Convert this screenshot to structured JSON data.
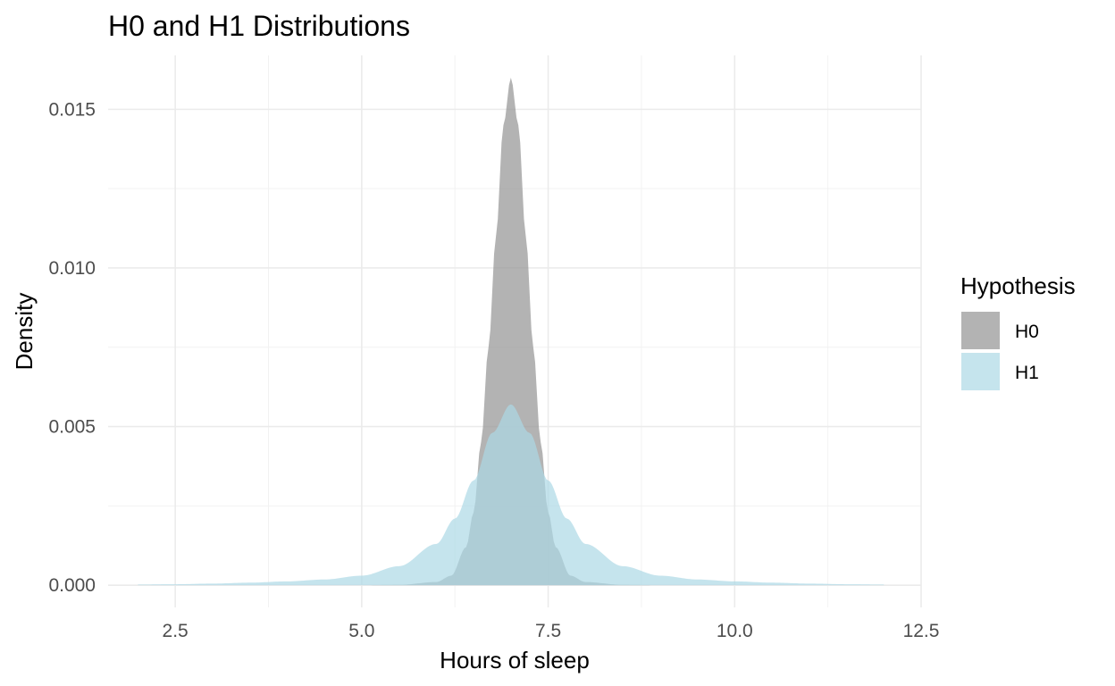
{
  "chart_data": {
    "type": "area",
    "title": "H0 and H1 Distributions",
    "xlabel": "Hours of sleep",
    "ylabel": "Density",
    "xlim": [
      1.6,
      12.5
    ],
    "ylim": [
      -0.0007,
      0.0167
    ],
    "x_ticks": [
      2.5,
      5.0,
      7.5,
      10.0,
      12.5
    ],
    "x_tick_labels": [
      "2.5",
      "5.0",
      "7.5",
      "10.0",
      "12.5"
    ],
    "y_ticks": [
      0.0,
      0.005,
      0.01,
      0.015
    ],
    "y_tick_labels": [
      "0.000",
      "0.005",
      "0.010",
      "0.015"
    ],
    "grid": true,
    "legend": {
      "title": "Hypothesis",
      "position": "right"
    },
    "series": [
      {
        "name": "H0",
        "color": "#999999",
        "x_range": [
          2,
          12
        ],
        "points": [
          [
            2.0,
            0.0
          ],
          [
            5.0,
            0.0
          ],
          [
            5.5,
            1e-05
          ],
          [
            6.0,
            0.0001
          ],
          [
            6.2,
            0.0003
          ],
          [
            6.4,
            0.0012
          ],
          [
            6.5,
            0.0023
          ],
          [
            6.6,
            0.0045
          ],
          [
            6.7,
            0.0075
          ],
          [
            6.8,
            0.011
          ],
          [
            6.9,
            0.0145
          ],
          [
            7.0,
            0.016
          ],
          [
            7.1,
            0.0145
          ],
          [
            7.2,
            0.011
          ],
          [
            7.3,
            0.0075
          ],
          [
            7.4,
            0.0045
          ],
          [
            7.5,
            0.0023
          ],
          [
            7.6,
            0.0012
          ],
          [
            7.8,
            0.0003
          ],
          [
            8.0,
            0.0001
          ],
          [
            8.5,
            1e-05
          ],
          [
            9.0,
            0.0
          ],
          [
            12.0,
            0.0
          ]
        ]
      },
      {
        "name": "H1",
        "color": "#add8e6",
        "x_range": [
          2,
          12
        ],
        "points": [
          [
            2.0,
            2e-05
          ],
          [
            2.5,
            3e-05
          ],
          [
            3.0,
            5e-05
          ],
          [
            3.5,
            8e-05
          ],
          [
            4.0,
            0.00012
          ],
          [
            4.5,
            0.00018
          ],
          [
            5.0,
            0.0003
          ],
          [
            5.5,
            0.0006
          ],
          [
            6.0,
            0.0013
          ],
          [
            6.25,
            0.0021
          ],
          [
            6.5,
            0.0033
          ],
          [
            6.75,
            0.0048
          ],
          [
            7.0,
            0.0057
          ],
          [
            7.25,
            0.0048
          ],
          [
            7.5,
            0.0033
          ],
          [
            7.75,
            0.0021
          ],
          [
            8.0,
            0.0013
          ],
          [
            8.5,
            0.0006
          ],
          [
            9.0,
            0.0003
          ],
          [
            9.5,
            0.00018
          ],
          [
            10.0,
            0.00012
          ],
          [
            10.5,
            8e-05
          ],
          [
            11.0,
            5e-05
          ],
          [
            11.5,
            3e-05
          ],
          [
            12.0,
            2e-05
          ]
        ]
      }
    ]
  }
}
